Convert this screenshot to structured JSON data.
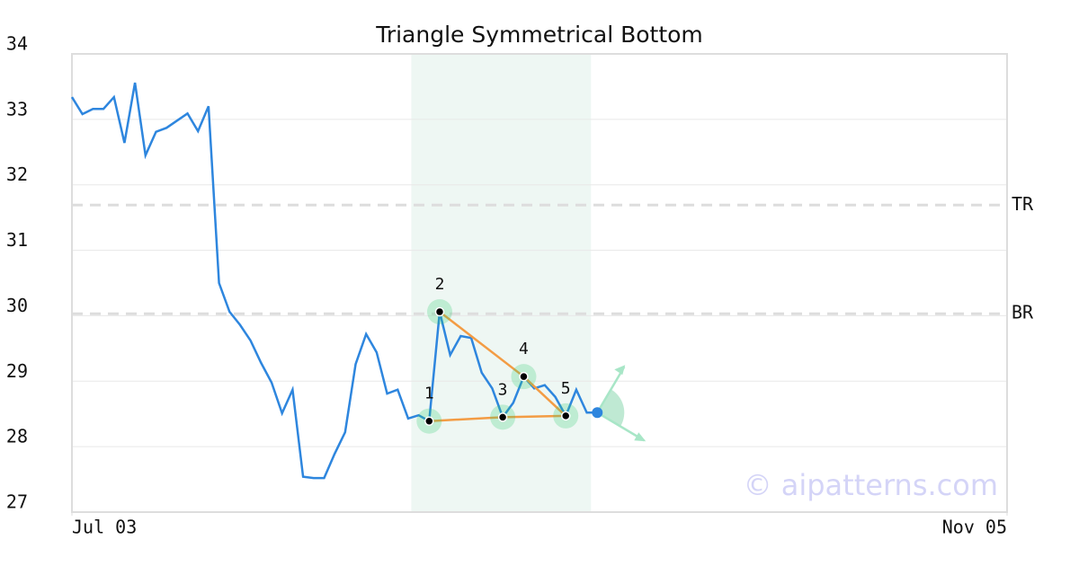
{
  "chart_data": {
    "type": "line",
    "title": "Triangle Symmetrical Bottom",
    "x": [
      0,
      1,
      2,
      3,
      4,
      5,
      6,
      7,
      8,
      9,
      10,
      11,
      12,
      13,
      14,
      15,
      16,
      17,
      18,
      19,
      20,
      21,
      22,
      23,
      24,
      25,
      26,
      27,
      28,
      29,
      30,
      31,
      32,
      33,
      34,
      35,
      36,
      37,
      38,
      39,
      40,
      41,
      42,
      43,
      44,
      45,
      46,
      47,
      48,
      49,
      50
    ],
    "series": [
      {
        "color": "#2e86de",
        "values": [
          33.34,
          33.08,
          33.16,
          33.16,
          33.34,
          32.64,
          33.56,
          32.45,
          32.81,
          32.87,
          32.98,
          33.09,
          32.82,
          33.2,
          30.5,
          30.06,
          29.86,
          29.62,
          29.28,
          28.98,
          28.51,
          28.87,
          27.54,
          27.52,
          27.52,
          27.89,
          28.22,
          29.26,
          29.72,
          29.44,
          28.81,
          28.87,
          28.43,
          28.48,
          28.39,
          30.06,
          29.4,
          29.69,
          29.66,
          29.13,
          28.89,
          28.45,
          28.67,
          29.07,
          28.89,
          28.94,
          28.76,
          28.47,
          28.87,
          28.52,
          28.52
        ]
      }
    ],
    "xlim": [
      0,
      89
    ],
    "xticks": [
      {
        "value": 0,
        "label": "Jul 03"
      },
      {
        "value": 89,
        "label": "Nov 05"
      }
    ],
    "ylim": [
      27,
      34
    ],
    "yticks": [
      27,
      28,
      29,
      30,
      31,
      32,
      33,
      34
    ],
    "grid": true,
    "highlight_range": [
      32.3,
      49.4
    ],
    "levels": [
      {
        "label": "TR",
        "value": 31.69
      },
      {
        "label": "BR",
        "value": 30.03
      }
    ],
    "pattern_points": [
      {
        "label": "1",
        "x": 34,
        "y": 28.39
      },
      {
        "label": "2",
        "x": 35,
        "y": 30.06
      },
      {
        "label": "3",
        "x": 41,
        "y": 28.45
      },
      {
        "label": "4",
        "x": 43,
        "y": 29.07
      },
      {
        "label": "5",
        "x": 47,
        "y": 28.47
      }
    ],
    "watermark": "© aipatterns.com"
  }
}
